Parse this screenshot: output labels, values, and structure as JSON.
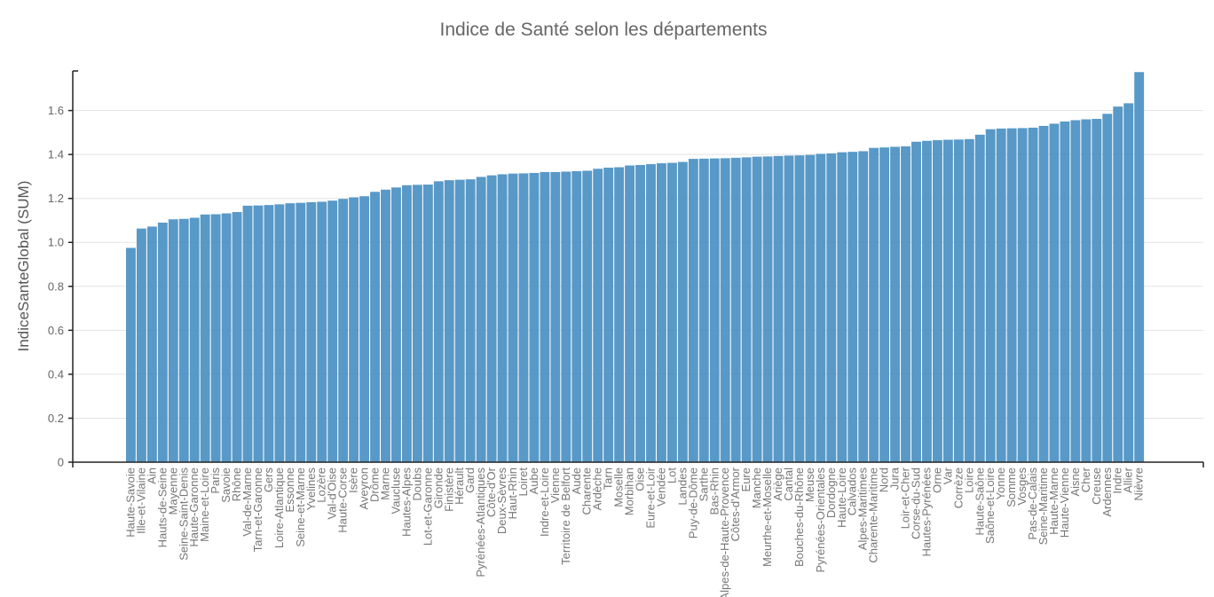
{
  "chart_data": {
    "type": "bar",
    "title": "Indice de Santé selon les départements",
    "xlabel": "",
    "ylabel": "IndiceSanteGlobal (SUM)",
    "ylim": [
      0,
      1.78
    ],
    "yticks": [
      0,
      0.2,
      0.4,
      0.6,
      0.8,
      1.0,
      1.2,
      1.4,
      1.6
    ],
    "ytick_labels": [
      "0",
      "0.2",
      "0.4",
      "0.6",
      "0.8",
      "1.0",
      "1.2",
      "1.4",
      "1.6"
    ],
    "grid": true,
    "bar_color": "#4f93c4",
    "categories": [
      "Haute-Savoie",
      "Ille-et-Vilaine",
      "Ain",
      "Hauts-de-Seine",
      "Mayenne",
      "Seine-Saint-Denis",
      "Haute-Garonne",
      "Maine-et-Loire",
      "Paris",
      "Savoie",
      "Rhône",
      "Val-de-Marne",
      "Tarn-et-Garonne",
      "Gers",
      "Loire-Atlantique",
      "Essonne",
      "Seine-et-Marne",
      "Yvelines",
      "Lozère",
      "Val-d'Oise",
      "Haute-Corse",
      "Isère",
      "Aveyron",
      "Drôme",
      "Marne",
      "Vaucluse",
      "Hautes-Alpes",
      "Doubs",
      "Lot-et-Garonne",
      "Gironde",
      "Finistère",
      "Hérault",
      "Gard",
      "Pyrénées-Atlantiques",
      "Côte-d'Or",
      "Deux-Sèvres",
      "Haut-Rhin",
      "Loiret",
      "Aube",
      "Indre-et-Loire",
      "Vienne",
      "Territoire de Belfort",
      "Aude",
      "Charente",
      "Ardèche",
      "Tarn",
      "Moselle",
      "Morbihan",
      "Oise",
      "Eure-et-Loir",
      "Vendée",
      "Lot",
      "Landes",
      "Puy-de-Dôme",
      "Sarthe",
      "Bas-Rhin",
      "Alpes-de-Haute-Provence",
      "Côtes-d'Armor",
      "Eure",
      "Manche",
      "Meurthe-et-Moselle",
      "Ariège",
      "Cantal",
      "Bouches-du-Rhône",
      "Meuse",
      "Pyrénées-Orientales",
      "Dordogne",
      "Haute-Loire",
      "Calvados",
      "Alpes-Maritimes",
      "Charente-Maritime",
      "Nord",
      "Jura",
      "Loir-et-Cher",
      "Corse-du-Sud",
      "Hautes-Pyrénées",
      "Orne",
      "Var",
      "Corrèze",
      "Loire",
      "Haute-Saône",
      "Saône-et-Loire",
      "Yonne",
      "Somme",
      "Vosges",
      "Pas-de-Calais",
      "Seine-Maritime",
      "Haute-Marne",
      "Haute-Vienne",
      "Aisne",
      "Cher",
      "Creuse",
      "Ardennes",
      "Indre",
      "Allier",
      "Nièvre"
    ],
    "values": [
      0.975,
      1.063,
      1.072,
      1.09,
      1.105,
      1.107,
      1.112,
      1.127,
      1.128,
      1.132,
      1.138,
      1.167,
      1.168,
      1.17,
      1.173,
      1.178,
      1.18,
      1.183,
      1.185,
      1.19,
      1.198,
      1.205,
      1.21,
      1.23,
      1.24,
      1.25,
      1.26,
      1.262,
      1.263,
      1.278,
      1.283,
      1.285,
      1.287,
      1.298,
      1.305,
      1.31,
      1.313,
      1.314,
      1.316,
      1.32,
      1.32,
      1.322,
      1.324,
      1.326,
      1.335,
      1.34,
      1.342,
      1.35,
      1.352,
      1.356,
      1.36,
      1.362,
      1.366,
      1.38,
      1.381,
      1.382,
      1.383,
      1.385,
      1.387,
      1.39,
      1.391,
      1.393,
      1.395,
      1.396,
      1.398,
      1.403,
      1.405,
      1.41,
      1.412,
      1.415,
      1.43,
      1.432,
      1.435,
      1.437,
      1.458,
      1.462,
      1.465,
      1.467,
      1.468,
      1.47,
      1.49,
      1.515,
      1.518,
      1.519,
      1.52,
      1.522,
      1.53,
      1.54,
      1.55,
      1.556,
      1.56,
      1.562,
      1.585,
      1.618,
      1.633,
      1.775
    ]
  }
}
